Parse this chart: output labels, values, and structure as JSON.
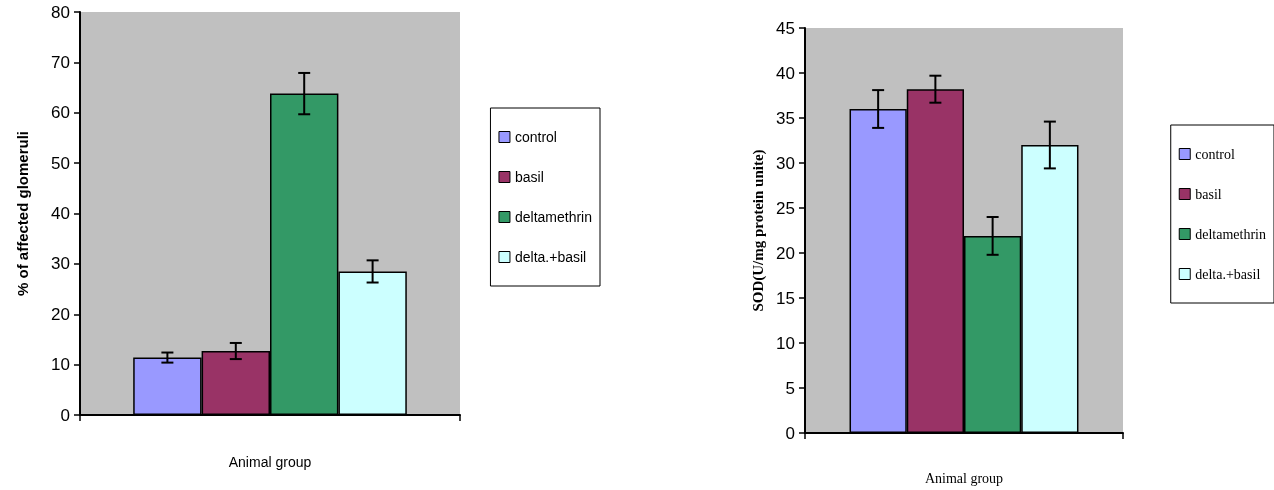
{
  "chart_data": [
    {
      "type": "bar",
      "xlabel": "Animal group",
      "ylabel": "% of affected glomeruli",
      "categories": [
        null
      ],
      "ylim": [
        0,
        80
      ],
      "yticks": [
        0,
        10,
        20,
        30,
        40,
        50,
        60,
        70,
        80
      ],
      "grid": false,
      "legend": "right",
      "series": [
        {
          "name": "control",
          "color": "#9999ff",
          "values": [
            11.4
          ],
          "errors": [
            1.0
          ]
        },
        {
          "name": "basil",
          "color": "#993366",
          "values": [
            12.7
          ],
          "errors": [
            1.6
          ]
        },
        {
          "name": "deltamethrin",
          "color": "#339966",
          "values": [
            63.8
          ],
          "errors": [
            4.1
          ]
        },
        {
          "name": "delta.+basil",
          "color": "#ccffff",
          "values": [
            28.5
          ],
          "errors": [
            2.2
          ]
        }
      ]
    },
    {
      "type": "bar",
      "xlabel": "Animal group",
      "ylabel": "SOD(U/mg protein unite)",
      "categories": [
        null
      ],
      "ylim": [
        0,
        45
      ],
      "yticks": [
        0,
        5,
        10,
        15,
        20,
        25,
        30,
        35,
        40,
        45
      ],
      "grid": false,
      "legend": "right",
      "series": [
        {
          "name": "control",
          "color": "#9999ff",
          "values": [
            36.0
          ],
          "errors": [
            2.1
          ]
        },
        {
          "name": "basil",
          "color": "#993366",
          "values": [
            38.2
          ],
          "errors": [
            1.5
          ]
        },
        {
          "name": "deltamethrin",
          "color": "#339966",
          "values": [
            21.9
          ],
          "errors": [
            2.1
          ]
        },
        {
          "name": "delta.+basil",
          "color": "#ccffff",
          "values": [
            32.0
          ],
          "errors": [
            2.6
          ]
        }
      ]
    }
  ]
}
